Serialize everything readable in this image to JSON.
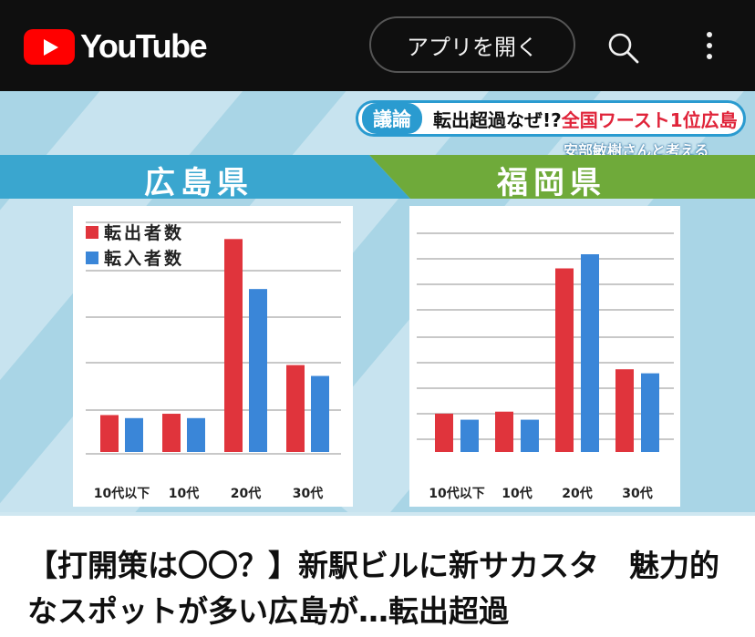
{
  "header": {
    "logo_text": "YouTube",
    "open_app_label": "アプリを開く",
    "search_icon": "search-icon",
    "menu_icon": "more-vert-icon"
  },
  "video": {
    "topic_tag": "議論",
    "topic_text": "転出超過なぜ!?",
    "topic_text_red": "全国ワースト1位広島",
    "guest_text": "安部敏樹さんと考える",
    "left_title": "広島県",
    "right_title": "福岡県",
    "colors": {
      "out": "#e0343c",
      "in": "#3a86d8",
      "left_band": "#3aa6cf",
      "right_band": "#6faa3a"
    }
  },
  "chart_data": [
    {
      "type": "bar",
      "title": "広島県",
      "categories": [
        "10代以下",
        "10代",
        "20代",
        "30代"
      ],
      "series": [
        {
          "name": "転出者数",
          "values": [
            8.5,
            8.8,
            49,
            20
          ]
        },
        {
          "name": "転入者数",
          "values": [
            7.8,
            7.8,
            37.5,
            17.5
          ]
        }
      ],
      "ylim": [
        0,
        52
      ],
      "grid": true,
      "legend": "top-left"
    },
    {
      "type": "bar",
      "title": "福岡県",
      "categories": [
        "10代以下",
        "10代",
        "20代",
        "30代"
      ],
      "series": [
        {
          "name": "転出者数",
          "values": [
            9.5,
            10,
            45.5,
            20.5
          ]
        },
        {
          "name": "転入者数",
          "values": [
            8,
            8,
            49,
            19.5
          ]
        }
      ],
      "ylim": [
        0,
        56
      ],
      "grid": true,
      "legend": "none"
    }
  ],
  "content": {
    "video_title": "【打開策は〇〇？】新駅ビルに新サカスタ　魅力的なスポットが多い広島が…転出超過"
  }
}
